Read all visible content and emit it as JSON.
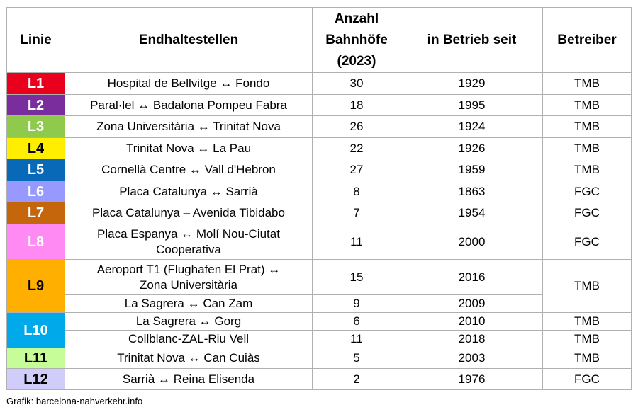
{
  "headers": {
    "linie": "Linie",
    "endhaltestellen": "Endhaltestellen",
    "anzahl": "Anzahl Bahnhöfe (2023)",
    "betrieb": "in Betrieb seit",
    "betreiber": "Betreiber"
  },
  "rows": [
    {
      "line": "L1",
      "stops": "Hospital de Bellvitge ↔ Fondo",
      "stations": "30",
      "since": "1929",
      "operator": "TMB"
    },
    {
      "line": "L2",
      "stops": "Paral·lel ↔ Badalona Pompeu Fabra",
      "stations": "18",
      "since": "1995",
      "operator": "TMB"
    },
    {
      "line": "L3",
      "stops": "Zona Universitària ↔ Trinitat Nova",
      "stations": "26",
      "since": "1924",
      "operator": "TMB"
    },
    {
      "line": "L4",
      "stops": "Trinitat Nova ↔ La Pau",
      "stations": "22",
      "since": "1926",
      "operator": "TMB"
    },
    {
      "line": "L5",
      "stops": "Cornellà Centre ↔ Vall d'Hebron",
      "stations": "27",
      "since": "1959",
      "operator": "TMB"
    },
    {
      "line": "L6",
      "stops": "Placa Catalunya ↔ Sarrià",
      "stations": "8",
      "since": "1863",
      "operator": "FGC"
    },
    {
      "line": "L7",
      "stops": "Placa Catalunya – Avenida Tibidabo",
      "stations": "7",
      "since": "1954",
      "operator": "FGC"
    },
    {
      "line": "L8",
      "stops": "Placa Espanya ↔ Molí Nou-Ciutat Cooperativa",
      "stations": "11",
      "since": "2000",
      "operator": "FGC"
    },
    {
      "line": "L9",
      "stops": "Aeroport T1 (Flughafen El Prat) ↔ Zona Universitària",
      "stations": "15",
      "since": "2016",
      "operator": "TMB"
    },
    {
      "stops": "La Sagrera ↔ Can Zam",
      "stations": "9",
      "since": "2009"
    },
    {
      "line": "L10",
      "stops": "La Sagrera ↔ Gorg",
      "stations": "6",
      "since": "2010",
      "operator": "TMB"
    },
    {
      "stops": "Collblanc-ZAL-Riu Vell",
      "stations": "11",
      "since": "2018",
      "operator": "TMB"
    },
    {
      "line": "L11",
      "stops": "Trinitat Nova ↔ Can Cuiàs",
      "stations": "5",
      "since": "2003",
      "operator": "TMB"
    },
    {
      "line": "L12",
      "stops": "Sarrià ↔ Reina Elisenda",
      "stations": "2",
      "since": "1976",
      "operator": "FGC"
    }
  ],
  "line_colors": {
    "L1": "#e8001c",
    "L2": "#7a2d9c",
    "L3": "#8fca4c",
    "L4": "#ffee00",
    "L5": "#0769b8",
    "L6": "#9899ff",
    "L7": "#c5650c",
    "L8": "#ff8af3",
    "L9": "#ffaf00",
    "L10": "#00aaea",
    "L11": "#c6fd99",
    "L12": "#d0cdfb"
  },
  "footer": "Grafik: barcelona-nahverkehr.info"
}
